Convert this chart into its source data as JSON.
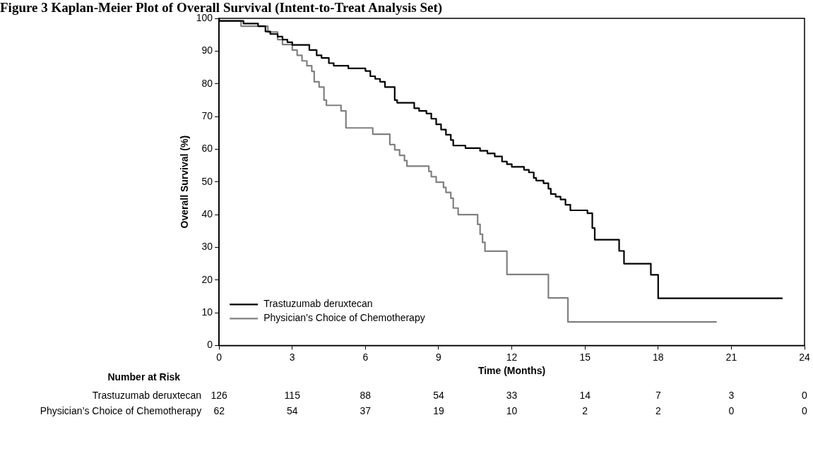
{
  "chart_data": {
    "type": "step",
    "title": "Figure 3 Kaplan-Meier Plot of Overall Survival (Intent-to-Treat Analysis Set)",
    "xlabel": "Time (Months)",
    "ylabel": "Overall Survival (%)",
    "xlim": [
      0,
      24
    ],
    "xticks": [
      0,
      3,
      6,
      9,
      12,
      15,
      18,
      21,
      24
    ],
    "ylim": [
      0,
      100
    ],
    "yticks": [
      0,
      10,
      20,
      30,
      40,
      50,
      60,
      70,
      80,
      90,
      100
    ],
    "grid": false,
    "legend": "bottom left",
    "marker": "none",
    "line_style": "solid",
    "series": [
      {
        "name": "Trastuzumab deruxtecan",
        "color": "#000000",
        "x": [
          0,
          1.0,
          1.6,
          1.9,
          2.1,
          2.4,
          2.6,
          2.8,
          3.0,
          3.7,
          4.0,
          4.2,
          4.5,
          4.7,
          5.3,
          6.0,
          6.2,
          6.4,
          6.6,
          6.8,
          7.2,
          7.3,
          8.0,
          8.2,
          8.5,
          8.7,
          8.9,
          9.1,
          9.3,
          9.5,
          9.6,
          10.1,
          10.7,
          11.0,
          11.3,
          11.6,
          11.8,
          12.0,
          12.5,
          12.7,
          12.9,
          13.0,
          13.3,
          13.5,
          13.6,
          13.8,
          14.0,
          14.2,
          14.4,
          15.1,
          15.3,
          15.4,
          16.4,
          16.6,
          17.7,
          18.0,
          21.2,
          23.1
        ],
        "values": [
          100,
          99.2,
          98.4,
          97.6,
          96,
          95.2,
          94.4,
          93.5,
          92.7,
          91.9,
          90.3,
          88.7,
          87.9,
          86.3,
          85.5,
          84.7,
          83.9,
          82.3,
          81.5,
          80.6,
          79,
          75,
          74.2,
          72.5,
          71.7,
          70.9,
          69.3,
          67.6,
          66,
          64.4,
          62.8,
          61.1,
          60.3,
          59.5,
          58.7,
          57.8,
          56.2,
          55.4,
          54.6,
          53.7,
          52.9,
          51.2,
          50.4,
          49.6,
          47.9,
          46.3,
          45.5,
          44.6,
          43,
          41.3,
          40.4,
          35.9,
          32.3,
          28.9,
          25,
          21.6,
          14.4,
          14.4
        ]
      },
      {
        "name": "Physician’s Choice of Chemotherapy",
        "color": "#808080",
        "x": [
          0,
          0.9,
          2.0,
          2.4,
          2.6,
          3.0,
          3.2,
          3.4,
          3.6,
          3.8,
          3.9,
          4.1,
          4.3,
          4.4,
          5.0,
          5.2,
          6.3,
          7.0,
          7.2,
          7.4,
          7.6,
          7.7,
          8.6,
          8.7,
          8.9,
          9.2,
          9.3,
          9.5,
          9.6,
          9.8,
          10.6,
          10.7,
          10.8,
          10.9,
          11.8,
          13.5,
          14.3,
          20.1,
          20.4
        ],
        "values": [
          100,
          99.2,
          97.6,
          95.8,
          93.5,
          92,
          90.3,
          88.7,
          87,
          85.5,
          83.8,
          80.6,
          79,
          75,
          73.4,
          71.7,
          66.5,
          64.6,
          61.4,
          59.8,
          58.1,
          56.5,
          54.8,
          53.2,
          51.6,
          49.9,
          48.3,
          46.8,
          45,
          42,
          40,
          37,
          34,
          31.5,
          28.8,
          21.7,
          14.5,
          7.2,
          7.2
        ]
      }
    ],
    "annotations": [
      "Number at Risk",
      "Trastuzumab deruxtecan",
      "126",
      "115",
      "88",
      "54",
      "33",
      "14",
      "7",
      "3",
      "0",
      "Physician’s Choice of Chemotherapy",
      "62",
      "54",
      "37",
      "19",
      "10",
      "2",
      "2",
      "0",
      "0"
    ]
  }
}
